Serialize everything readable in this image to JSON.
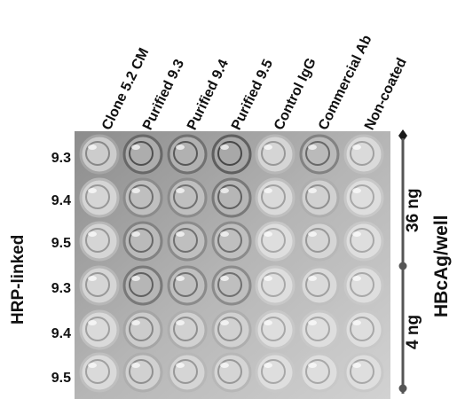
{
  "columns": [
    "Clone 5.2 CM",
    "Purified 9.3",
    "Purified 9.4",
    "Purified 9.5",
    "Control IgG",
    "Commercial Ab",
    "Non-coated"
  ],
  "rows": [
    "9.3",
    "9.4",
    "9.5",
    "9.3",
    "9.4",
    "9.5"
  ],
  "left_label": "HRP-linked",
  "right_label": "HBcAg/well",
  "upper_dose": "36 ng",
  "lower_dose": "4 ng",
  "bracket_color": "#555555",
  "well_intensity": [
    [
      0.4,
      0.75,
      0.7,
      0.8,
      0.3,
      0.6,
      0.25
    ],
    [
      0.3,
      0.55,
      0.55,
      0.65,
      0.25,
      0.35,
      0.2
    ],
    [
      0.3,
      0.6,
      0.55,
      0.55,
      0.2,
      0.3,
      0.2
    ],
    [
      0.3,
      0.65,
      0.55,
      0.55,
      0.2,
      0.25,
      0.2
    ],
    [
      0.25,
      0.4,
      0.35,
      0.35,
      0.2,
      0.2,
      0.2
    ],
    [
      0.25,
      0.35,
      0.3,
      0.3,
      0.2,
      0.2,
      0.2
    ]
  ]
}
